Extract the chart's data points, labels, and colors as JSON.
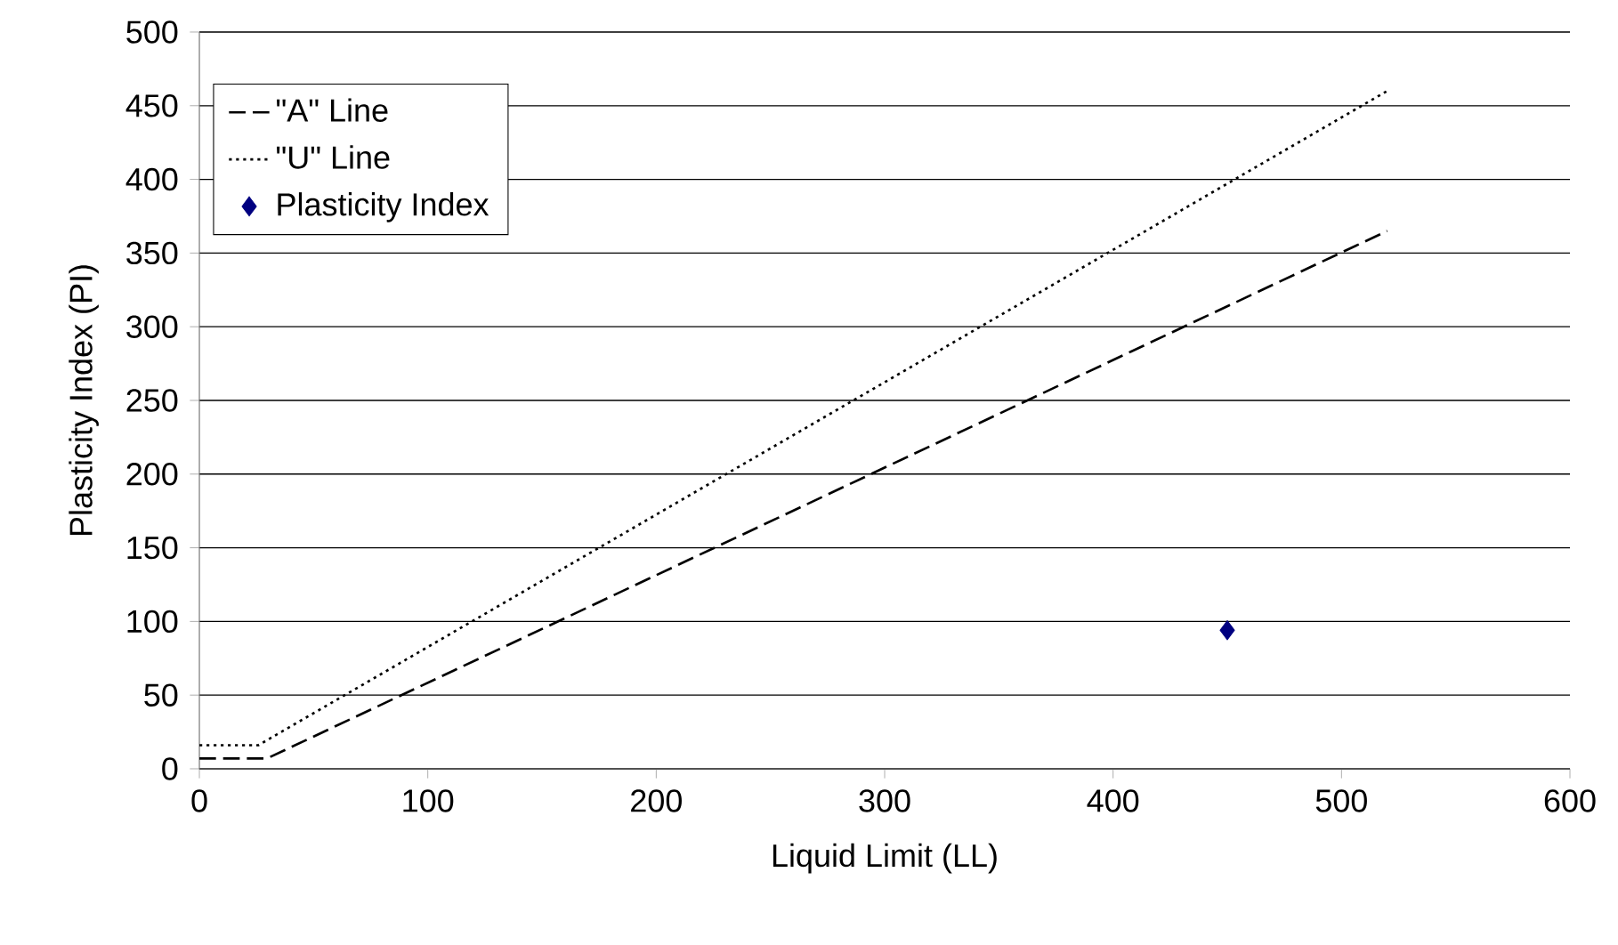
{
  "chart_data": {
    "type": "scatter",
    "xlabel": "Liquid Limit (LL)",
    "ylabel": "Plasticity Index (PI)",
    "xlim": [
      0,
      600
    ],
    "xticks": [
      0,
      100,
      200,
      300,
      400,
      500,
      600
    ],
    "ylim": [
      0,
      500
    ],
    "yticks": [
      0,
      50,
      100,
      150,
      200,
      250,
      300,
      350,
      400,
      450,
      500
    ],
    "grid": "y",
    "legend": "top left",
    "series": [
      {
        "name": "\"A\" Line",
        "type": "line",
        "line_style": "dashed",
        "marker": "none",
        "color": "#000000",
        "x": [
          0,
          29.6,
          520
        ],
        "values": [
          7,
          7,
          365
        ]
      },
      {
        "name": "\"U\" Line",
        "type": "line",
        "line_style": "dotted",
        "marker": "none",
        "color": "#000000",
        "x": [
          0,
          25.8,
          520
        ],
        "values": [
          16,
          16,
          460
        ]
      },
      {
        "name": "Plasticity Index",
        "marker": "diamond",
        "color": "#000080",
        "x": [
          450
        ],
        "values": [
          94
        ]
      }
    ]
  }
}
